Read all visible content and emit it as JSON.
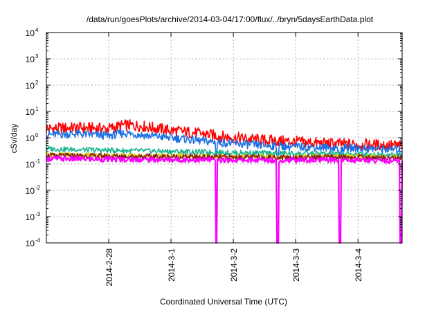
{
  "chart_data": {
    "type": "line",
    "title": "/data/run/goesPlots/archive/2014-03-04/17:00/flux/../bryn/5daysEarthData.plot",
    "xlabel": "Coordinated Universal Time (UTC)",
    "ylabel": "cSv/day",
    "yscale": "log",
    "ylim": [
      0.0001,
      10000
    ],
    "yticks": [
      {
        "base": "10",
        "exp": "-4",
        "value": 0.0001
      },
      {
        "base": "10",
        "exp": "-3",
        "value": 0.001
      },
      {
        "base": "10",
        "exp": "-2",
        "value": 0.01
      },
      {
        "base": "10",
        "exp": "-1",
        "value": 0.1
      },
      {
        "base": "10",
        "exp": "0",
        "value": 1
      },
      {
        "base": "10",
        "exp": "1",
        "value": 10
      },
      {
        "base": "10",
        "exp": "2",
        "value": 100
      },
      {
        "base": "10",
        "exp": "3",
        "value": 1000
      },
      {
        "base": "10",
        "exp": "4",
        "value": 10000
      }
    ],
    "xlim": [
      "2014-02-27T00:00",
      "2014-03-04T17:00"
    ],
    "xticks": [
      {
        "label": "2014-2-28",
        "date": "2014-02-28"
      },
      {
        "label": "2014-3-1",
        "date": "2014-03-01"
      },
      {
        "label": "2014-3-2",
        "date": "2014-03-02"
      },
      {
        "label": "2014-3-3",
        "date": "2014-03-03"
      },
      {
        "label": "2014-3-4",
        "date": "2014-03-04"
      }
    ],
    "grid": true,
    "legend": "none",
    "series": [
      {
        "color": "#ff0000",
        "x": [
          "2014-02-27T00:00",
          "2014-02-27T12:00",
          "2014-02-28T00:00",
          "2014-02-28T06:00",
          "2014-02-28T12:00",
          "2014-03-01T00:00",
          "2014-03-01T12:00",
          "2014-03-02T00:00",
          "2014-03-02T12:00",
          "2014-03-03T00:00",
          "2014-03-03T12:00",
          "2014-03-04T00:00",
          "2014-03-04T17:00"
        ],
        "y": [
          2.2,
          2.4,
          2.2,
          3.0,
          2.8,
          1.9,
          1.4,
          1.0,
          0.8,
          0.7,
          0.6,
          0.55,
          0.5
        ]
      },
      {
        "color": "#1a6fe6",
        "x": [
          "2014-02-27T00:00",
          "2014-02-27T12:00",
          "2014-02-28T00:00",
          "2014-02-28T06:00",
          "2014-02-28T12:00",
          "2014-03-01T00:00",
          "2014-03-01T12:00",
          "2014-03-02T00:00",
          "2014-03-02T12:00",
          "2014-03-03T00:00",
          "2014-03-03T12:00",
          "2014-03-04T00:00",
          "2014-03-04T17:00"
        ],
        "y": [
          1.3,
          1.4,
          1.2,
          1.5,
          1.3,
          1.0,
          0.75,
          0.6,
          0.5,
          0.45,
          0.42,
          0.4,
          0.35
        ],
        "dips": [
          "2014-03-01T17:30",
          "2014-03-02T17:00",
          "2014-03-03T17:00",
          "2014-03-04T16:30"
        ],
        "dip_value": 0.2
      },
      {
        "color": "#1ab394",
        "x": [
          "2014-02-27T00:00",
          "2014-02-28T00:00",
          "2014-03-01T00:00",
          "2014-03-02T00:00",
          "2014-03-03T00:00",
          "2014-03-04T00:00",
          "2014-03-04T17:00"
        ],
        "y": [
          0.38,
          0.33,
          0.3,
          0.27,
          0.25,
          0.24,
          0.22
        ]
      },
      {
        "color": "#cccc00",
        "x": [
          "2014-02-27T00:00",
          "2014-02-28T00:00",
          "2014-03-01T00:00",
          "2014-03-02T00:00",
          "2014-03-03T00:00",
          "2014-03-04T00:00",
          "2014-03-04T17:00"
        ],
        "y": [
          0.23,
          0.21,
          0.2,
          0.19,
          0.19,
          0.19,
          0.18
        ]
      },
      {
        "color": "#8b1a1a",
        "x": [
          "2014-02-27T00:00",
          "2014-02-28T00:00",
          "2014-03-01T00:00",
          "2014-03-02T00:00",
          "2014-03-03T00:00",
          "2014-03-04T00:00",
          "2014-03-04T17:00"
        ],
        "y": [
          0.21,
          0.2,
          0.19,
          0.18,
          0.18,
          0.18,
          0.17
        ]
      },
      {
        "color": "#ff00ff",
        "x": [
          "2014-02-27T00:00",
          "2014-02-28T00:00",
          "2014-03-01T00:00",
          "2014-03-02T00:00",
          "2014-03-03T00:00",
          "2014-03-04T00:00",
          "2014-03-04T17:00"
        ],
        "y": [
          0.16,
          0.15,
          0.145,
          0.14,
          0.14,
          0.14,
          0.13
        ],
        "dips": [
          "2014-03-01T17:30",
          "2014-03-02T17:00",
          "2014-03-03T17:00",
          "2014-03-04T16:30"
        ],
        "dip_value": 0.0001
      }
    ]
  }
}
